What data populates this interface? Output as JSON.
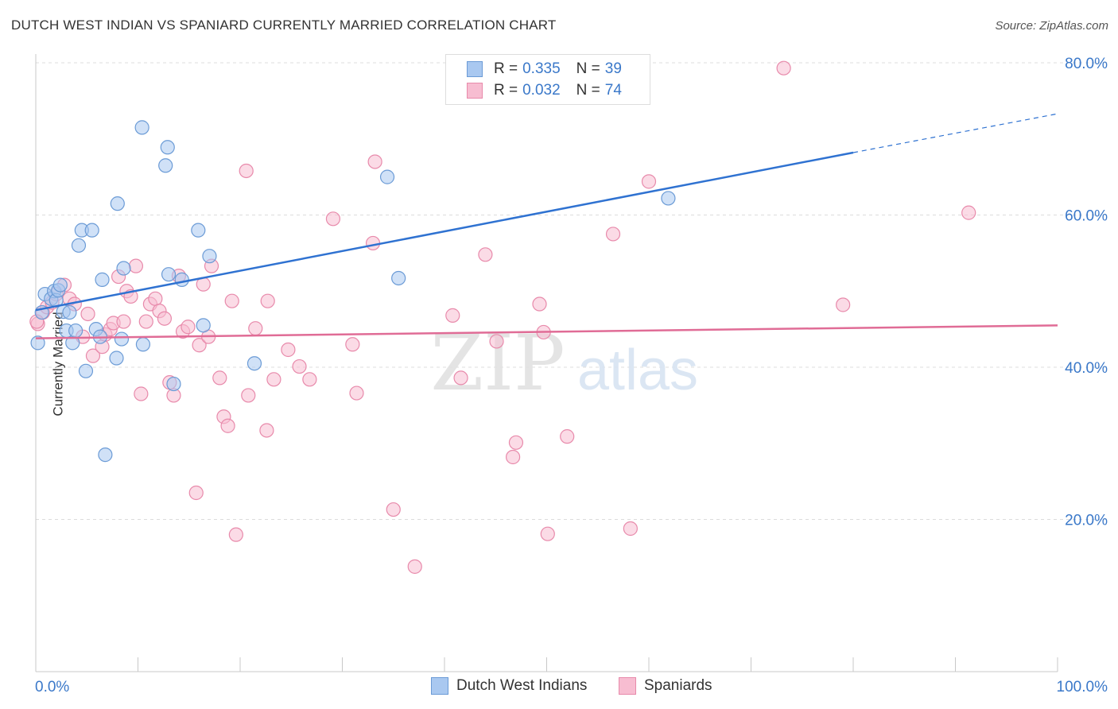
{
  "title": "DUTCH WEST INDIAN VS SPANIARD CURRENTLY MARRIED CORRELATION CHART",
  "source": "Source: ZipAtlas.com",
  "watermark": {
    "zip": "ZIP",
    "atlas": "atlas"
  },
  "legend": {
    "rows": [
      {
        "r_label": "R =",
        "r_value": "0.335",
        "n_label": "N =",
        "n_value": "39"
      },
      {
        "r_label": "R =",
        "r_value": "0.032",
        "n_label": "N =",
        "n_value": "74"
      }
    ]
  },
  "bottom_legend": [
    "Dutch West Indians",
    "Spaniards"
  ],
  "colors": {
    "blue_fill": "#a9c8f0",
    "blue_stroke": "#6b9bd6",
    "blue_line": "#2f72d1",
    "pink_fill": "#f7bdd1",
    "pink_stroke": "#e88aab",
    "pink_line": "#e06c96",
    "grid": "#dcdcdc",
    "tick_text": "#3a78c9"
  },
  "chart_data": {
    "type": "scatter",
    "title": "DUTCH WEST INDIAN VS SPANIARD CURRENTLY MARRIED CORRELATION CHART",
    "xlabel": "",
    "ylabel": "Currently Married",
    "xlim": [
      0,
      100
    ],
    "ylim": [
      0,
      82
    ],
    "x_tick_labels": [
      "0.0%",
      "100.0%"
    ],
    "y_ticks": [
      20,
      40,
      60,
      80
    ],
    "y_tick_labels": [
      "20.0%",
      "40.0%",
      "60.0%",
      "80.0%"
    ],
    "series": [
      {
        "name": "Dutch West Indians",
        "r": 0.335,
        "n": 39,
        "trend": {
          "x0": 0,
          "y0": 47.5,
          "x1": 80,
          "y1": 68.2,
          "dash_to_x": 100,
          "dash_to_y": 73.3
        },
        "points": [
          [
            0.2,
            43.2
          ],
          [
            0.6,
            47.2
          ],
          [
            0.9,
            49.6
          ],
          [
            1.5,
            49.0
          ],
          [
            1.8,
            50.0
          ],
          [
            2.0,
            48.8
          ],
          [
            2.2,
            50.1
          ],
          [
            2.4,
            50.8
          ],
          [
            2.7,
            47.3
          ],
          [
            3.0,
            44.8
          ],
          [
            3.3,
            47.2
          ],
          [
            3.6,
            43.2
          ],
          [
            3.9,
            44.8
          ],
          [
            4.2,
            56.0
          ],
          [
            4.5,
            58.0
          ],
          [
            4.9,
            39.5
          ],
          [
            5.5,
            58.0
          ],
          [
            5.9,
            45.0
          ],
          [
            6.3,
            44.0
          ],
          [
            6.5,
            51.5
          ],
          [
            6.8,
            28.5
          ],
          [
            7.9,
            41.2
          ],
          [
            8.0,
            61.5
          ],
          [
            8.4,
            43.7
          ],
          [
            8.6,
            53.0
          ],
          [
            10.4,
            71.5
          ],
          [
            10.5,
            43.0
          ],
          [
            12.7,
            66.5
          ],
          [
            12.9,
            68.9
          ],
          [
            13.0,
            52.2
          ],
          [
            13.5,
            37.8
          ],
          [
            14.3,
            51.5
          ],
          [
            15.9,
            58.0
          ],
          [
            16.4,
            45.5
          ],
          [
            17.0,
            54.6
          ],
          [
            21.4,
            40.5
          ],
          [
            34.4,
            65.0
          ],
          [
            35.5,
            51.7
          ],
          [
            61.9,
            62.2
          ]
        ]
      },
      {
        "name": "Spaniards",
        "r": 0.032,
        "n": 74,
        "trend": {
          "x0": 0,
          "y0": 43.8,
          "x1": 100,
          "y1": 45.5
        },
        "points": [
          [
            0.2,
            45.7
          ],
          [
            0.7,
            47.2
          ],
          [
            1.1,
            47.9
          ],
          [
            1.6,
            48.5
          ],
          [
            2.0,
            49.6
          ],
          [
            2.8,
            50.8
          ],
          [
            3.3,
            49.0
          ],
          [
            3.8,
            48.3
          ],
          [
            4.6,
            44.0
          ],
          [
            5.1,
            47.0
          ],
          [
            5.6,
            41.5
          ],
          [
            6.5,
            42.7
          ],
          [
            6.8,
            44.3
          ],
          [
            7.3,
            45.0
          ],
          [
            7.6,
            45.8
          ],
          [
            8.1,
            51.9
          ],
          [
            8.6,
            46.0
          ],
          [
            8.9,
            50.0
          ],
          [
            9.3,
            49.3
          ],
          [
            9.8,
            53.3
          ],
          [
            10.3,
            36.5
          ],
          [
            10.8,
            46.0
          ],
          [
            11.2,
            48.3
          ],
          [
            11.7,
            49.0
          ],
          [
            12.1,
            47.4
          ],
          [
            12.6,
            46.4
          ],
          [
            13.1,
            38.0
          ],
          [
            13.5,
            36.3
          ],
          [
            14.0,
            52.0
          ],
          [
            14.4,
            44.7
          ],
          [
            14.9,
            45.3
          ],
          [
            15.7,
            23.5
          ],
          [
            16.0,
            42.9
          ],
          [
            16.4,
            50.9
          ],
          [
            16.9,
            44.0
          ],
          [
            17.2,
            53.3
          ],
          [
            18.0,
            38.6
          ],
          [
            18.4,
            33.5
          ],
          [
            18.8,
            32.3
          ],
          [
            19.2,
            48.7
          ],
          [
            19.6,
            18.0
          ],
          [
            20.6,
            65.8
          ],
          [
            20.8,
            36.3
          ],
          [
            21.5,
            45.1
          ],
          [
            22.6,
            31.7
          ],
          [
            22.7,
            48.7
          ],
          [
            23.3,
            38.4
          ],
          [
            24.7,
            42.3
          ],
          [
            25.8,
            40.1
          ],
          [
            26.8,
            38.4
          ],
          [
            29.1,
            59.5
          ],
          [
            31.0,
            43.0
          ],
          [
            31.4,
            36.6
          ],
          [
            33.0,
            56.3
          ],
          [
            33.2,
            67.0
          ],
          [
            35.0,
            21.3
          ],
          [
            37.1,
            13.8
          ],
          [
            40.8,
            46.8
          ],
          [
            41.6,
            38.6
          ],
          [
            44.0,
            54.8
          ],
          [
            45.1,
            43.4
          ],
          [
            46.7,
            28.2
          ],
          [
            47.0,
            30.1
          ],
          [
            49.3,
            48.3
          ],
          [
            49.7,
            44.6
          ],
          [
            50.1,
            18.1
          ],
          [
            52.0,
            30.9
          ],
          [
            56.5,
            57.5
          ],
          [
            58.2,
            18.8
          ],
          [
            60.0,
            64.4
          ],
          [
            73.2,
            79.3
          ],
          [
            79.0,
            48.2
          ],
          [
            91.3,
            60.3
          ],
          [
            0.1,
            46.0
          ]
        ]
      }
    ]
  }
}
